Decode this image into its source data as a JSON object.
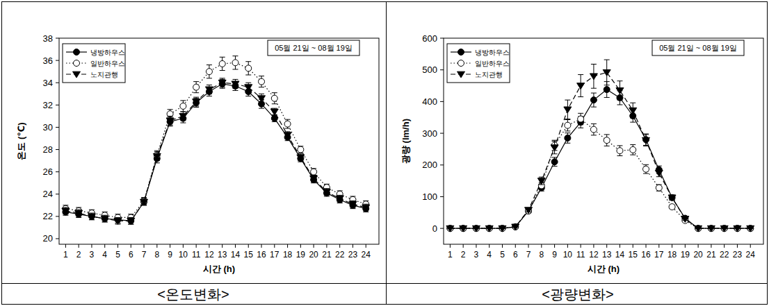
{
  "chart_data": [
    {
      "type": "line",
      "title": "<온도변화>",
      "x_label": "시간 (h)",
      "y_label": "온도 (℃)",
      "annotations": [
        "05월 21일 ~ 08월 19일"
      ],
      "x": [
        1,
        2,
        3,
        4,
        5,
        6,
        7,
        8,
        9,
        10,
        11,
        12,
        13,
        14,
        15,
        16,
        17,
        18,
        19,
        20,
        21,
        22,
        23,
        24
      ],
      "xlim": [
        0.5,
        25
      ],
      "xticks": [
        1,
        2,
        3,
        4,
        5,
        6,
        7,
        8,
        9,
        10,
        11,
        12,
        13,
        14,
        15,
        16,
        17,
        18,
        19,
        20,
        21,
        22,
        23,
        24
      ],
      "ylim": [
        19.5,
        38
      ],
      "yticks": [
        20,
        22,
        24,
        26,
        28,
        30,
        32,
        34,
        36,
        38
      ],
      "legend": "upper left",
      "grid": false,
      "series": [
        {
          "name": "냉방하우스",
          "color": "#000000",
          "marker": "circle",
          "line_style": "solid",
          "values": [
            22.4,
            22.2,
            22.0,
            21.8,
            21.7,
            21.6,
            23.3,
            27.2,
            30.5,
            30.8,
            32.2,
            33.2,
            33.9,
            33.7,
            33.2,
            32.1,
            30.8,
            29.1,
            27.2,
            25.3,
            24.1,
            23.5,
            23.0,
            22.7
          ],
          "errors": [
            0.3,
            0.3,
            0.3,
            0.3,
            0.3,
            0.3,
            0.3,
            0.4,
            0.4,
            0.4,
            0.4,
            0.4,
            0.4,
            0.4,
            0.4,
            0.4,
            0.3,
            0.3,
            0.3,
            0.3,
            0.3,
            0.3,
            0.3,
            0.3
          ]
        },
        {
          "name": "일반하우스",
          "color": "#000000",
          "marker": "open_circle",
          "line_style": "dotted",
          "values": [
            22.7,
            22.5,
            22.3,
            22.1,
            21.9,
            21.9,
            23.4,
            27.5,
            31.2,
            31.9,
            33.6,
            35.0,
            35.7,
            35.8,
            35.3,
            34.1,
            32.6,
            30.3,
            28.0,
            26.0,
            24.6,
            24.0,
            23.5,
            23.1
          ],
          "errors": [
            0.3,
            0.3,
            0.3,
            0.3,
            0.3,
            0.3,
            0.3,
            0.4,
            0.4,
            0.5,
            0.5,
            0.6,
            0.6,
            0.6,
            0.6,
            0.5,
            0.5,
            0.4,
            0.3,
            0.3,
            0.3,
            0.3,
            0.3,
            0.3
          ]
        },
        {
          "name": "노지관행",
          "color": "#000000",
          "marker": "triangle_down",
          "line_style": "dashed",
          "values": [
            22.5,
            22.3,
            22.0,
            21.8,
            21.6,
            21.6,
            23.3,
            27.4,
            30.6,
            31.0,
            32.3,
            33.4,
            34.0,
            33.9,
            33.6,
            32.6,
            31.4,
            29.3,
            27.3,
            25.4,
            24.2,
            23.6,
            23.1,
            22.8
          ],
          "errors": [
            0.3,
            0.3,
            0.3,
            0.3,
            0.3,
            0.3,
            0.3,
            0.4,
            0.4,
            0.4,
            0.4,
            0.4,
            0.4,
            0.4,
            0.4,
            0.4,
            0.3,
            0.3,
            0.3,
            0.3,
            0.3,
            0.3,
            0.3,
            0.3
          ]
        }
      ]
    },
    {
      "type": "line",
      "title": "<광량변화>",
      "x_label": "시간 (h)",
      "y_label": "광량 (lm/h)",
      "annotations": [
        "05월 21일 ~ 08월 19일"
      ],
      "x": [
        1,
        2,
        3,
        4,
        5,
        6,
        7,
        8,
        9,
        10,
        11,
        12,
        13,
        14,
        15,
        16,
        17,
        18,
        19,
        20,
        21,
        22,
        23,
        24
      ],
      "xlim": [
        0.5,
        25
      ],
      "xticks": [
        1,
        2,
        3,
        4,
        5,
        6,
        7,
        8,
        9,
        10,
        11,
        12,
        13,
        14,
        15,
        16,
        17,
        18,
        19,
        20,
        21,
        22,
        23,
        24
      ],
      "ylim": [
        -50,
        600
      ],
      "yticks": [
        0,
        100,
        200,
        300,
        400,
        500,
        600
      ],
      "legend": "upper left",
      "grid": false,
      "series": [
        {
          "name": "냉방하우스",
          "color": "#000000",
          "marker": "circle",
          "line_style": "solid",
          "values": [
            0,
            0,
            0,
            0,
            0,
            5,
            55,
            128,
            210,
            285,
            335,
            405,
            438,
            412,
            355,
            280,
            185,
            97,
            32,
            0,
            0,
            0,
            0,
            0
          ],
          "errors": [
            0,
            0,
            0,
            0,
            0,
            2,
            6,
            10,
            14,
            16,
            18,
            22,
            25,
            22,
            20,
            18,
            12,
            8,
            5,
            0,
            0,
            0,
            0,
            0
          ]
        },
        {
          "name": "일반하우스",
          "color": "#000000",
          "marker": "open_circle",
          "line_style": "dotted",
          "values": [
            0,
            0,
            0,
            0,
            0,
            5,
            55,
            135,
            262,
            325,
            345,
            312,
            278,
            245,
            248,
            187,
            128,
            68,
            25,
            0,
            0,
            0,
            0,
            0
          ],
          "errors": [
            0,
            0,
            0,
            0,
            0,
            2,
            6,
            10,
            16,
            18,
            18,
            18,
            18,
            16,
            16,
            14,
            10,
            6,
            4,
            0,
            0,
            0,
            0,
            0
          ]
        },
        {
          "name": "노지관행",
          "color": "#000000",
          "marker": "triangle_down",
          "line_style": "dashed",
          "values": [
            0,
            0,
            0,
            0,
            0,
            5,
            58,
            150,
            255,
            375,
            450,
            480,
            492,
            435,
            372,
            278,
            175,
            97,
            30,
            0,
            0,
            0,
            0,
            0
          ],
          "errors": [
            0,
            0,
            0,
            0,
            0,
            2,
            6,
            12,
            20,
            30,
            35,
            38,
            40,
            30,
            24,
            18,
            12,
            8,
            5,
            0,
            0,
            0,
            0,
            0
          ]
        }
      ]
    }
  ]
}
